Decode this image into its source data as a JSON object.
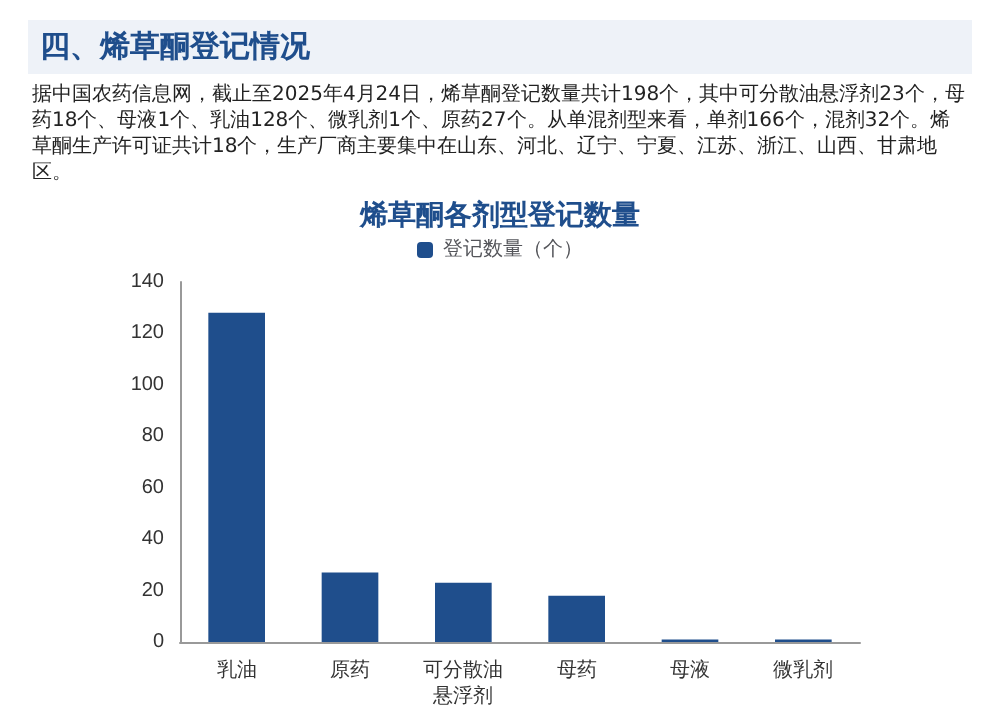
{
  "chart_data": {
    "type": "bar",
    "title": "四、烯草酮登记情况",
    "annotations": [
      "据中国农药信息网，截止至2025年4月24日，烯草酮登记数量共计198个，其中可分散油悬浮剂23个，母药18个、母液1个、乳油128个、微乳剂1个、原药27个。从单混剂型来看，单剂166个，混剂32个。烯草酮生产许可证共计18个，生产厂商主要集中在山东、河北、辽宁、宁夏、江苏、浙江、山西、甘肃地区。"
    ],
    "subtitle": "烯草酮各剂型登记数量",
    "categories": [
      "乳油",
      "原药",
      "可分散油悬浮剂",
      "母药",
      "母液",
      "微乳剂"
    ],
    "series": [
      {
        "name": "登记数量（个）",
        "color": "#1f4e8c",
        "values": [
          128,
          27,
          23,
          18,
          1,
          1
        ]
      }
    ],
    "ylim": [
      0,
      140
    ],
    "yticks": [
      0,
      20,
      40,
      60,
      80,
      100,
      120,
      140
    ],
    "legend": "top"
  }
}
